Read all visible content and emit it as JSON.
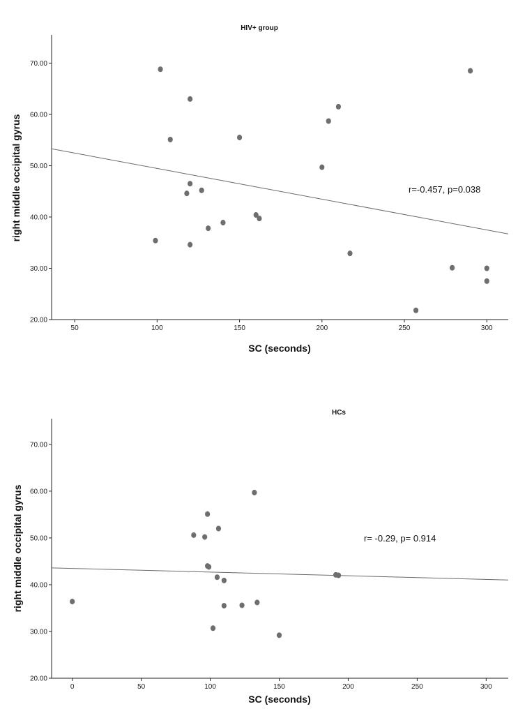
{
  "chart_data": [
    {
      "type": "scatter",
      "title": "HIV+ group",
      "xlabel": "SC (seconds)",
      "ylabel": "right middle occipital gyrus",
      "xlim": [
        36,
        313
      ],
      "ylim": [
        20,
        75.5
      ],
      "xticks": [
        50,
        100,
        150,
        200,
        250,
        300
      ],
      "yticks": [
        20,
        30,
        40,
        50,
        60,
        70
      ],
      "xtick_labels": [
        "50",
        "100",
        "150",
        "200",
        "250",
        "300"
      ],
      "ytick_labels": [
        "20.00",
        "30.00",
        "40.00",
        "50.00",
        "60.00",
        "70.00"
      ],
      "points": [
        {
          "x": 99,
          "y": 35.4
        },
        {
          "x": 102,
          "y": 68.8
        },
        {
          "x": 108,
          "y": 55.1
        },
        {
          "x": 118,
          "y": 44.6
        },
        {
          "x": 120,
          "y": 63.0
        },
        {
          "x": 120,
          "y": 46.5
        },
        {
          "x": 120,
          "y": 34.6
        },
        {
          "x": 127,
          "y": 45.2
        },
        {
          "x": 131,
          "y": 37.8
        },
        {
          "x": 140,
          "y": 38.9
        },
        {
          "x": 150,
          "y": 55.5
        },
        {
          "x": 160,
          "y": 40.4
        },
        {
          "x": 162,
          "y": 39.7
        },
        {
          "x": 200,
          "y": 49.7
        },
        {
          "x": 204,
          "y": 58.7
        },
        {
          "x": 210,
          "y": 61.5
        },
        {
          "x": 217,
          "y": 32.9
        },
        {
          "x": 257,
          "y": 21.8
        },
        {
          "x": 279,
          "y": 30.1
        },
        {
          "x": 290,
          "y": 68.5
        },
        {
          "x": 300,
          "y": 30.0
        },
        {
          "x": 300,
          "y": 27.5
        }
      ],
      "fit_line": {
        "x": [
          36,
          313
        ],
        "y": [
          53.3,
          36.7
        ]
      },
      "annotation": {
        "text": "r=-0.457, p=0.038",
        "x": 225,
        "y": 52.5
      },
      "grid": false,
      "legend": "none"
    },
    {
      "type": "scatter",
      "title": "HCs",
      "xlabel": "SC (seconds)",
      "ylabel": "right middle occipital gyrus",
      "xlim": [
        -15,
        316
      ],
      "ylim": [
        20,
        75.5
      ],
      "xticks": [
        0,
        50,
        100,
        150,
        200,
        250,
        300
      ],
      "yticks": [
        20,
        30,
        40,
        50,
        60,
        70
      ],
      "xtick_labels": [
        "0",
        "50",
        "100",
        "150",
        "200",
        "250",
        "300"
      ],
      "ytick_labels": [
        "20.00",
        "30.00",
        "40.00",
        "50.00",
        "60.00",
        "70.00"
      ],
      "points": [
        {
          "x": 0,
          "y": 36.4
        },
        {
          "x": 88,
          "y": 50.6
        },
        {
          "x": 96,
          "y": 50.2
        },
        {
          "x": 98,
          "y": 55.1
        },
        {
          "x": 98,
          "y": 44.0
        },
        {
          "x": 99,
          "y": 43.8
        },
        {
          "x": 102,
          "y": 30.7
        },
        {
          "x": 105,
          "y": 41.6
        },
        {
          "x": 106,
          "y": 52.0
        },
        {
          "x": 110,
          "y": 40.9
        },
        {
          "x": 110,
          "y": 35.5
        },
        {
          "x": 123,
          "y": 35.6
        },
        {
          "x": 132,
          "y": 59.7
        },
        {
          "x": 134,
          "y": 36.2
        },
        {
          "x": 150,
          "y": 29.2
        },
        {
          "x": 191,
          "y": 42.1
        },
        {
          "x": 193,
          "y": 42.0
        }
      ],
      "fit_line": {
        "x": [
          -15,
          316
        ],
        "y": [
          43.6,
          41.0
        ]
      },
      "annotation": {
        "text": "r= -0.29, p= 0.914",
        "x": 211,
        "y": 50.0
      },
      "grid": false,
      "legend": "none"
    }
  ]
}
